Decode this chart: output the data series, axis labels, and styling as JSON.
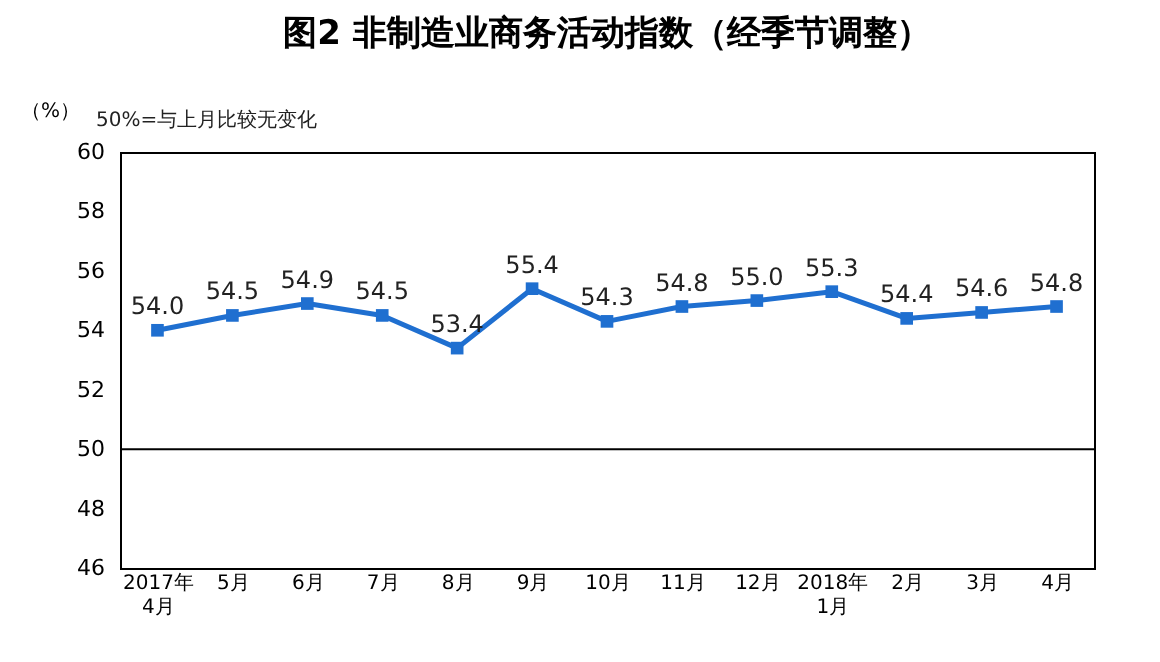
{
  "chart_data": {
    "type": "line",
    "title": "图2  非制造业商务活动指数（经季节调整）",
    "ylabel": "（%）",
    "annotations": [
      "50%=与上月比较无变化"
    ],
    "categories": [
      "2017年\n4月",
      "5月",
      "6月",
      "7月",
      "8月",
      "9月",
      "10月",
      "11月",
      "12月",
      "2018年\n1月",
      "2月",
      "3月",
      "4月"
    ],
    "series": [
      {
        "color": "#1f6fd0",
        "values": [
          54.0,
          54.5,
          54.9,
          54.5,
          53.4,
          55.4,
          54.3,
          54.8,
          55.0,
          55.3,
          54.4,
          54.6,
          54.8
        ],
        "value_labels": [
          "54.0",
          "54.5",
          "54.9",
          "54.5",
          "53.4",
          "55.4",
          "54.3",
          "54.8",
          "55.0",
          "55.3",
          "54.4",
          "54.6",
          "54.8"
        ]
      }
    ],
    "ylim": [
      46,
      60
    ],
    "yticks": [
      46,
      48,
      50,
      52,
      54,
      56,
      58,
      60
    ],
    "ref_lines": [
      {
        "axis": "y",
        "value": 50,
        "color": "#000000"
      }
    ],
    "marker": "square",
    "line_style": "solid",
    "grid": false
  }
}
